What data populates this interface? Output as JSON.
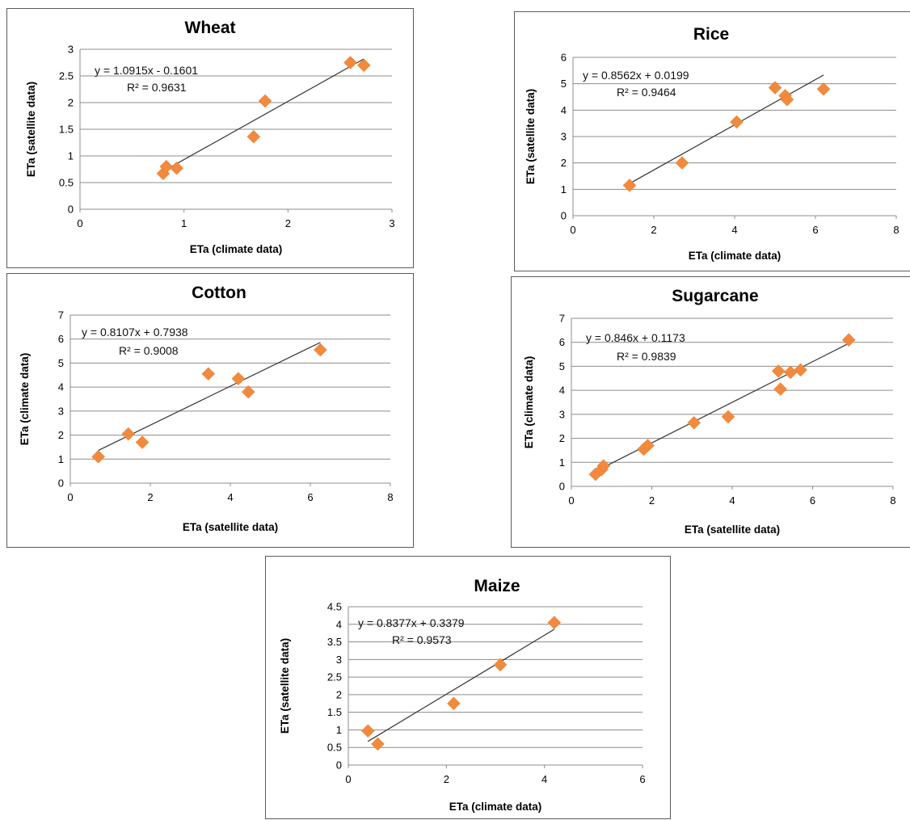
{
  "chart_data": [
    {
      "type": "scatter",
      "title": "Wheat",
      "xlabel": "ETa (climate data)",
      "ylabel": "ETa (satellite data)",
      "xlim": [
        0,
        3
      ],
      "ylim": [
        0,
        3
      ],
      "xticks": [
        "0",
        "1",
        "2",
        "3"
      ],
      "yticks": [
        "0",
        "0.5",
        "1",
        "1.5",
        "2",
        "2.5",
        "3"
      ],
      "grid": true,
      "points": [
        [
          0.8,
          0.67
        ],
        [
          0.83,
          0.8
        ],
        [
          0.93,
          0.77
        ],
        [
          1.67,
          1.36
        ],
        [
          1.78,
          2.03
        ],
        [
          2.6,
          2.75
        ],
        [
          2.73,
          2.7
        ]
      ],
      "trendline": {
        "slope": 1.0915,
        "intercept": -0.1601,
        "x_range": [
          0.8,
          2.73
        ]
      },
      "equation": "y = 1.0915x - 0.1601",
      "r2": "R² = 0.9631"
    },
    {
      "type": "scatter",
      "title": "Rice",
      "xlabel": "ETa (climate data)",
      "ylabel": "ETa (satellite data)",
      "xlim": [
        0,
        8
      ],
      "ylim": [
        0,
        6
      ],
      "xticks": [
        "0",
        "2",
        "4",
        "6",
        "8"
      ],
      "yticks": [
        "0",
        "1",
        "2",
        "3",
        "4",
        "5",
        "6"
      ],
      "grid": true,
      "points": [
        [
          1.4,
          1.15
        ],
        [
          2.7,
          2.0
        ],
        [
          4.05,
          3.55
        ],
        [
          5.0,
          4.85
        ],
        [
          5.25,
          4.55
        ],
        [
          5.3,
          4.4
        ],
        [
          6.2,
          4.8
        ]
      ],
      "trendline": {
        "slope": 0.8562,
        "intercept": 0.0199,
        "x_range": [
          1.4,
          6.2
        ]
      },
      "equation": "y = 0.8562x + 0.0199",
      "r2": "R² = 0.9464"
    },
    {
      "type": "scatter",
      "title": "Cotton",
      "xlabel": "ETa (satellite data)",
      "ylabel": "ETa (climate data)",
      "xlim": [
        0,
        8
      ],
      "ylim": [
        0,
        7
      ],
      "xticks": [
        "0",
        "2",
        "4",
        "6",
        "8"
      ],
      "yticks": [
        "0",
        "1",
        "2",
        "3",
        "4",
        "5",
        "6",
        "7"
      ],
      "grid": true,
      "points": [
        [
          0.7,
          1.1
        ],
        [
          1.45,
          2.05
        ],
        [
          1.8,
          1.7
        ],
        [
          3.45,
          4.55
        ],
        [
          4.2,
          4.35
        ],
        [
          4.45,
          3.8
        ],
        [
          6.25,
          5.55
        ]
      ],
      "trendline": {
        "slope": 0.8107,
        "intercept": 0.7938,
        "x_range": [
          0.7,
          6.25
        ]
      },
      "equation": "y = 0.8107x + 0.7938",
      "r2": "R² = 0.9008"
    },
    {
      "type": "scatter",
      "title": "Sugarcane",
      "xlabel": "ETa (satellite data)",
      "ylabel": "ETa (climate data)",
      "xlim": [
        0,
        8
      ],
      "ylim": [
        0,
        7
      ],
      "xticks": [
        "0",
        "2",
        "4",
        "6",
        "8"
      ],
      "yticks": [
        "0",
        "1",
        "2",
        "3",
        "4",
        "5",
        "6",
        "7"
      ],
      "grid": true,
      "points": [
        [
          0.6,
          0.5
        ],
        [
          0.75,
          0.7
        ],
        [
          0.8,
          0.85
        ],
        [
          1.8,
          1.55
        ],
        [
          1.9,
          1.7
        ],
        [
          3.05,
          2.65
        ],
        [
          3.9,
          2.9
        ],
        [
          5.15,
          4.8
        ],
        [
          5.2,
          4.05
        ],
        [
          5.45,
          4.75
        ],
        [
          5.7,
          4.85
        ],
        [
          6.9,
          6.1
        ]
      ],
      "trendline": {
        "slope": 0.846,
        "intercept": 0.1173,
        "x_range": [
          0.6,
          6.9
        ]
      },
      "equation": "y = 0.846x + 0.1173",
      "r2": "R² = 0.9839"
    },
    {
      "type": "scatter",
      "title": "Maize",
      "xlabel": "ETa (climate data)",
      "ylabel": "ETa (satellite data)",
      "xlim": [
        0,
        6
      ],
      "ylim": [
        0,
        4.5
      ],
      "xticks": [
        "0",
        "2",
        "4",
        "6"
      ],
      "yticks": [
        "0",
        "0.5",
        "1",
        "1.5",
        "2",
        "2.5",
        "3",
        "3.5",
        "4",
        "4.5"
      ],
      "grid": true,
      "points": [
        [
          0.4,
          0.97
        ],
        [
          0.6,
          0.6
        ],
        [
          2.15,
          1.75
        ],
        [
          3.1,
          2.85
        ],
        [
          4.2,
          4.05
        ]
      ],
      "trendline": {
        "slope": 0.8377,
        "intercept": 0.3379,
        "x_range": [
          0.4,
          4.2
        ]
      },
      "equation": "y = 0.8377x + 0.3379",
      "r2": "R² = 0.9573"
    }
  ],
  "colors": {
    "marker": "#F28A3E",
    "grid": "#8c8c8c",
    "trendline": "#333333"
  }
}
